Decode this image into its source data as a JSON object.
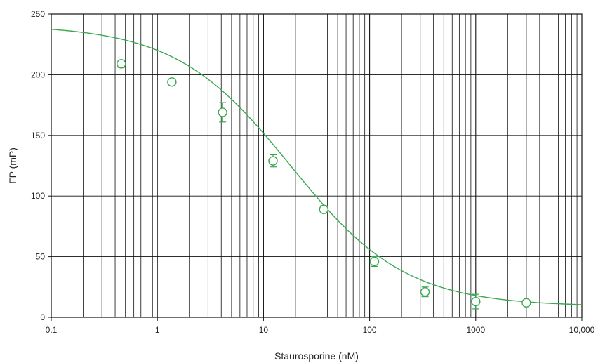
{
  "chart_data": {
    "type": "scatter",
    "title": "",
    "xlabel": "Staurosporine (nM)",
    "ylabel": "FP (mP)",
    "x_scale": "log",
    "xlim": [
      0.1,
      10000
    ],
    "ylim": [
      0,
      250
    ],
    "grid": true,
    "x_ticks": [
      {
        "value": 0.1,
        "label": "0.1"
      },
      {
        "value": 1,
        "label": "1"
      },
      {
        "value": 10,
        "label": "10"
      },
      {
        "value": 100,
        "label": "100"
      },
      {
        "value": 1000,
        "label": "1000"
      },
      {
        "value": 10000,
        "label": "10,000"
      }
    ],
    "y_ticks": [
      {
        "value": 0,
        "label": "0"
      },
      {
        "value": 50,
        "label": "50"
      },
      {
        "value": 100,
        "label": "100"
      },
      {
        "value": 150,
        "label": "150"
      },
      {
        "value": 200,
        "label": "200"
      },
      {
        "value": 250,
        "label": "250"
      }
    ],
    "points": [
      {
        "x": 0.457,
        "y": 209,
        "err": 3
      },
      {
        "x": 1.37,
        "y": 194,
        "err": 2
      },
      {
        "x": 4.12,
        "y": 169,
        "err": 8
      },
      {
        "x": 12.3,
        "y": 129,
        "err": 5
      },
      {
        "x": 37,
        "y": 89,
        "err": 3
      },
      {
        "x": 111,
        "y": 46,
        "err": 4
      },
      {
        "x": 333,
        "y": 21,
        "err": 4
      },
      {
        "x": 1000,
        "y": 13,
        "err": 6
      },
      {
        "x": 3000,
        "y": 12,
        "err": 0
      }
    ],
    "fit": {
      "top": 241,
      "bottom": 9,
      "ic50": 18,
      "hill": 0.8
    },
    "colors": {
      "series": "#3aa852",
      "grid": "#111111",
      "frame": "#111111"
    }
  }
}
